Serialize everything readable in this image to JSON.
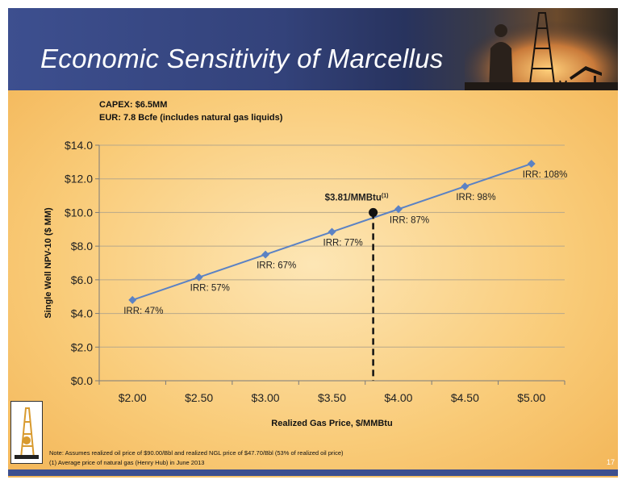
{
  "title": "Economic Sensitivity of Marcellus",
  "info": {
    "capex": "CAPEX: $6.5MM",
    "eur": "EUR: 7.8 Bcfe (includes natural gas liquids)"
  },
  "chart_data": {
    "type": "line",
    "x_tick_labels": [
      "$2.00",
      "$2.50",
      "$3.00",
      "$3.50",
      "$4.00",
      "$4.50",
      "$5.00"
    ],
    "y_tick_labels": [
      "$0.0",
      "$2.0",
      "$4.0",
      "$6.0",
      "$8.0",
      "$10.0",
      "$12.0",
      "$14.0"
    ],
    "xlabel": "Realized Gas Price, $/MMBtu",
    "ylabel": "Single Well NPV-10 ($ MM)",
    "xlim": [
      1.75,
      5.25
    ],
    "ylim": [
      0,
      14
    ],
    "grid": true,
    "series": [
      {
        "x": [
          2.0,
          2.5,
          3.0,
          3.5,
          4.0,
          4.5,
          5.0
        ],
        "y": [
          4.8,
          6.15,
          7.5,
          8.85,
          10.2,
          11.55,
          12.9
        ],
        "labels": [
          "IRR: 47%",
          "IRR: 57%",
          "IRR: 67%",
          "IRR: 77%",
          "IRR: 87%",
          "IRR: 98%",
          "IRR: 108%"
        ],
        "color": "#5b82c4"
      }
    ],
    "annotation": {
      "x": 3.81,
      "y": 10.0,
      "label": "$3.81/MMBtu",
      "superscript": "(1)"
    }
  },
  "notes": {
    "note1": "Note: Assumes realized oil price of $90.00/Bbl and realized NGL price of $47.70/Bbl (53% of realized oil price)",
    "note2": "(1) Average price of natural gas (Henry Hub) in June 2013"
  },
  "page_number": "17",
  "colors": {
    "header": "#3d4f8f",
    "line": "#5b82c4",
    "background": "#f9cb78"
  }
}
